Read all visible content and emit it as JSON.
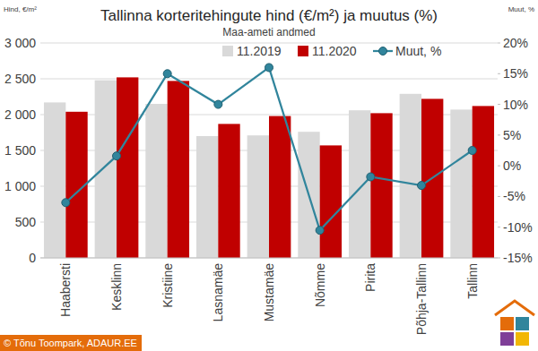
{
  "chart_data": {
    "type": "bar",
    "title": "Tallinna korteritehingute hind (€/m²) ja muutus (%)",
    "subtitle": "Maa-ameti andmed",
    "y_label": "Hind, €/m²",
    "y2_label": "Muut, %",
    "credit": "© Tõnu Toompark, ADAUR.EE",
    "categories": [
      "Haabersti",
      "Kesklinn",
      "Kristiine",
      "Lasnamäe",
      "Mustamäe",
      "Nõmme",
      "Pirita",
      "Põhja-Tallinn",
      "Tallinn"
    ],
    "series": [
      {
        "name": "11.2019",
        "type": "bar",
        "color": "#d9d9d9",
        "values": [
          2170,
          2480,
          2150,
          1700,
          1710,
          1760,
          2060,
          2290,
          2070
        ]
      },
      {
        "name": "11.2020",
        "type": "bar",
        "color": "#c00000",
        "values": [
          2040,
          2520,
          2470,
          1870,
          1980,
          1570,
          2020,
          2220,
          2120
        ]
      },
      {
        "name": "Muut, %",
        "type": "line",
        "axis": "y2",
        "color": "#31859c",
        "marker": "circle",
        "values": [
          -6,
          1.6,
          15,
          10,
          16,
          -10.5,
          -1.8,
          -3.2,
          2.5
        ]
      }
    ],
    "ylim": [
      0,
      3000
    ],
    "yticks": [
      0,
      500,
      {
        "value": 1000,
        "label": "1 000"
      },
      {
        "value": 1500,
        "label": "1 500"
      },
      {
        "value": 2000,
        "label": "2 000"
      },
      {
        "value": 2500,
        "label": "2 500"
      },
      {
        "value": 3000,
        "label": "3 000"
      }
    ],
    "y2lim": [
      -15,
      20
    ],
    "y2ticks": [
      {
        "value": -15,
        "label": "-15%"
      },
      {
        "value": -10,
        "label": "-10%"
      },
      {
        "value": -5,
        "label": "-5%"
      },
      {
        "value": 0,
        "label": "0%"
      },
      {
        "value": 5,
        "label": "5%"
      },
      {
        "value": 10,
        "label": "10%"
      },
      {
        "value": 15,
        "label": "15%"
      },
      {
        "value": 20,
        "label": "20%"
      }
    ],
    "grid": true,
    "legend": "top"
  }
}
